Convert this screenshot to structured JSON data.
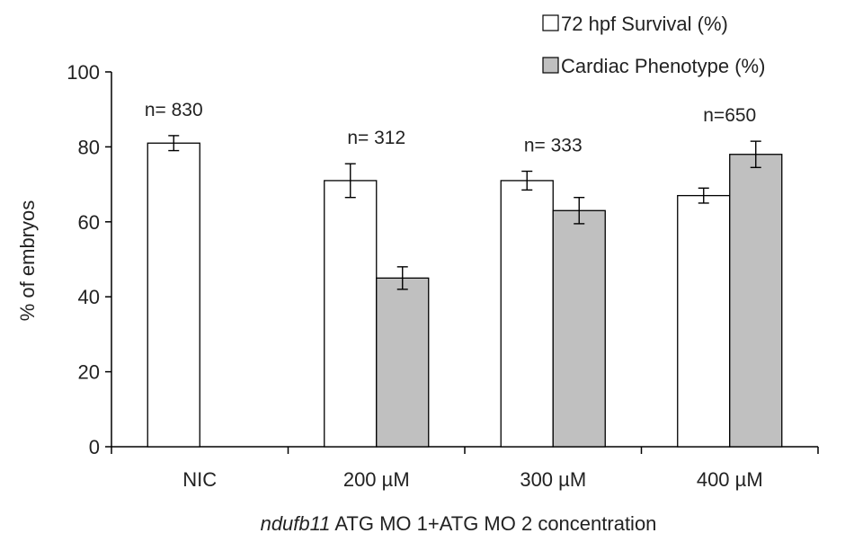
{
  "chart_data": {
    "type": "bar",
    "categories": [
      "NIC",
      "200 µM",
      "300 µM",
      "400 µM"
    ],
    "series": [
      {
        "name": "72 hpf Survival (%)",
        "values": [
          81,
          71,
          71,
          67
        ],
        "errors": [
          2,
          4.5,
          2.5,
          2
        ],
        "color": "#ffffff"
      },
      {
        "name": "Cardiac Phenotype (%)",
        "values": [
          null,
          45,
          63,
          78
        ],
        "errors": [
          null,
          3,
          3.5,
          3.5
        ],
        "color": "#c0c0c0"
      }
    ],
    "annotations": [
      "n= 830",
      "n= 312",
      "n= 333",
      "n=650"
    ],
    "yticks": [
      0,
      20,
      40,
      60,
      80,
      100
    ],
    "ylim": [
      0,
      100
    ],
    "ylabel": "% of embryos",
    "xlabel_italic": "ndufb11",
    "xlabel_rest": " ATG MO 1+ATG MO 2 concentration",
    "legend_position": "top-right",
    "grid": false
  }
}
